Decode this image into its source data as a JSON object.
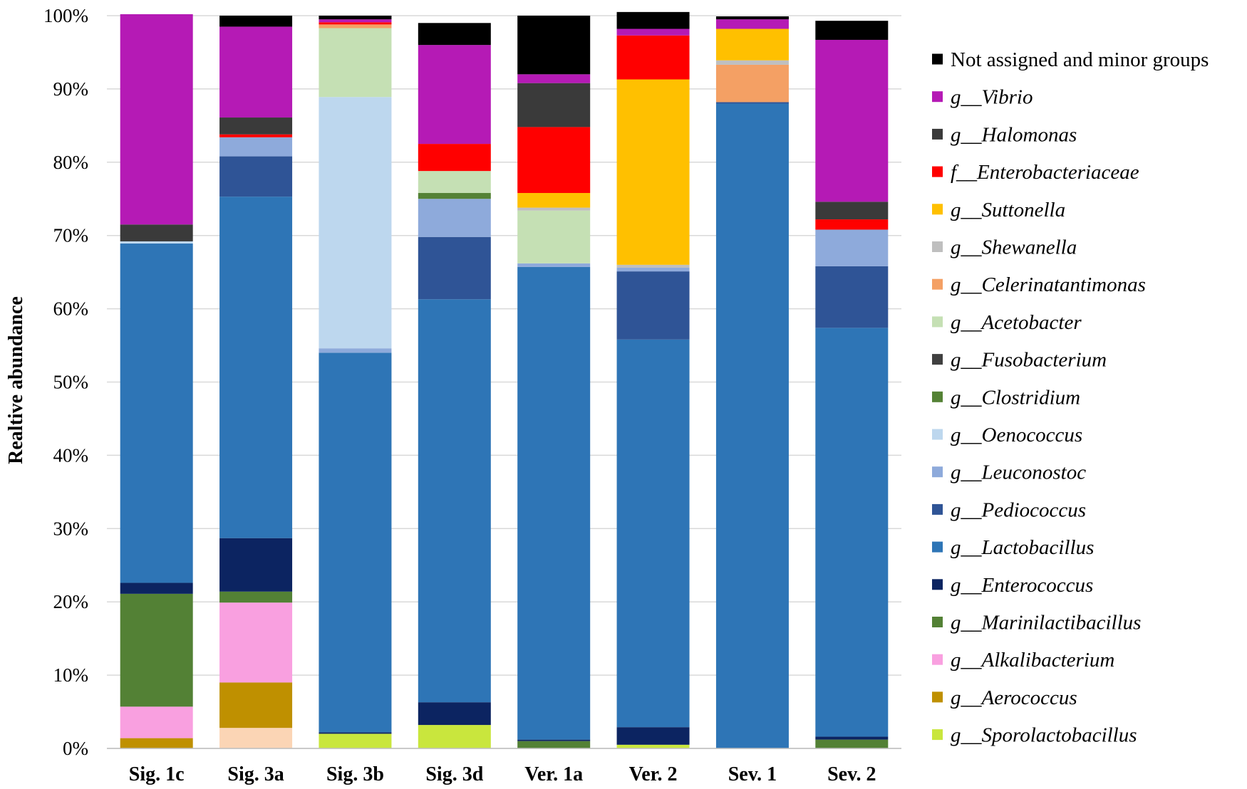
{
  "chart_data": {
    "type": "bar",
    "stacked": true,
    "xlabel": "",
    "ylabel": "Realtive abundance",
    "ylim": [
      0,
      100
    ],
    "y_ticks": [
      "0%",
      "10%",
      "20%",
      "30%",
      "40%",
      "50%",
      "60%",
      "70%",
      "80%",
      "90%",
      "100%"
    ],
    "grid": true,
    "legend_position": "right",
    "categories": [
      "Sig. 1c",
      "Sig. 3a",
      "Sig. 3b",
      "Sig. 3d",
      "Ver. 1a",
      "Ver. 2",
      "Sev. 1",
      "Sev. 2"
    ],
    "series": [
      {
        "name": "g__Sporolactobacillus",
        "color": "#c9e63d",
        "values": [
          0,
          0,
          2.0,
          3.2,
          0,
          0.5,
          0,
          0
        ]
      },
      {
        "name": "g__Aerococcus",
        "color": "#bf9000",
        "values": [
          1.4,
          6.2,
          0,
          0,
          0,
          0,
          0,
          0
        ]
      },
      {
        "name": "g__Alkalibacterium",
        "color": "#f9a0e0",
        "values": [
          4.3,
          10.9,
          0,
          0,
          0,
          0,
          0,
          0
        ]
      },
      {
        "name": "g__Marinilactibacillus",
        "color": "#538135",
        "values": [
          15.4,
          1.5,
          0,
          0,
          1.0,
          0,
          0,
          1.2
        ]
      },
      {
        "name": "g__Enterococcus",
        "color": "#0c2461",
        "values": [
          1.5,
          7.3,
          0.2,
          3.1,
          0.2,
          2.4,
          0,
          0.4
        ]
      },
      {
        "name": "g__Lactobacillus",
        "color": "#2e75b6",
        "values": [
          46.3,
          46.6,
          51.8,
          55.0,
          64.5,
          52.9,
          88.0,
          55.8
        ]
      },
      {
        "name": "g__Pediococcus",
        "color": "#2f5496",
        "values": [
          0,
          5.5,
          0,
          8.5,
          0,
          9.3,
          0.2,
          8.4
        ]
      },
      {
        "name": "g__Leuconostoc",
        "color": "#8eaadb",
        "values": [
          0,
          2.6,
          0.6,
          5.2,
          0.5,
          0.5,
          0,
          5.0
        ]
      },
      {
        "name": "g__Oenococcus",
        "color": "#bdd7ee",
        "values": [
          0.3,
          0,
          34.3,
          0,
          0,
          0,
          0,
          0
        ]
      },
      {
        "name": "g__Clostridium",
        "color": "#548235",
        "values": [
          0,
          0,
          0,
          0.8,
          0,
          0,
          0,
          0
        ]
      },
      {
        "name": "g__Fusobacterium",
        "color": "#404040",
        "values": [
          0,
          0,
          0,
          0,
          0,
          0,
          0,
          0
        ]
      },
      {
        "name": "g__Acetobacter",
        "color": "#c5e0b4",
        "values": [
          0,
          0,
          9.4,
          3.0,
          7.2,
          0,
          0,
          0
        ]
      },
      {
        "name": "g__Celerinatantimonas",
        "color": "#f4a064",
        "values": [
          0,
          0,
          0.5,
          0,
          0,
          0,
          5.1,
          0
        ]
      },
      {
        "name": "g__Shewanella",
        "color": "#bfbfbf",
        "values": [
          0,
          0,
          0,
          0,
          0.4,
          0.4,
          0.6,
          0
        ]
      },
      {
        "name": "g__Suttonella",
        "color": "#ffc000",
        "values": [
          0,
          0,
          0,
          0,
          2.0,
          25.3,
          4.3,
          0
        ]
      },
      {
        "name": "f__Enterobacteriaceae",
        "color": "#ff0000",
        "values": [
          0,
          0.4,
          0.3,
          3.7,
          9.0,
          6.0,
          0,
          1.4
        ]
      },
      {
        "name": "g__Halomonas",
        "color": "#3a3a3a",
        "values": [
          2.3,
          2.3,
          0,
          0,
          6.0,
          0,
          0,
          2.4
        ]
      },
      {
        "name": "g__Vibrio",
        "color": "#b51ab5",
        "values": [
          28.7,
          12.4,
          0.4,
          13.5,
          1.2,
          0.9,
          1.3,
          22.1
        ]
      },
      {
        "name": "Not assigned and minor groups",
        "color": "#000000",
        "values": [
          0,
          1.5,
          0.5,
          3.0,
          8.0,
          2.3,
          0.4,
          2.6
        ]
      },
      {
        "name": "unlabeled-peach",
        "color": "#fbd5b5",
        "values": [
          0,
          2.8,
          0,
          0,
          0,
          0,
          0,
          0
        ],
        "in_legend": false
      }
    ],
    "stack_order": [
      "g__Sporolactobacillus",
      "unlabeled-peach",
      "g__Aerococcus",
      "g__Alkalibacterium",
      "g__Marinilactibacillus",
      "g__Enterococcus",
      "g__Lactobacillus",
      "g__Pediococcus",
      "g__Leuconostoc",
      "g__Oenococcus",
      "g__Clostridium",
      "g__Fusobacterium",
      "g__Acetobacter",
      "g__Celerinatantimonas",
      "g__Shewanella",
      "g__Suttonella",
      "f__Enterobacteriaceae",
      "g__Halomonas",
      "g__Vibrio",
      "Not assigned and minor groups"
    ],
    "legend": [
      {
        "prefix": "",
        "name": "Not assigned and minor groups",
        "color": "#000000"
      },
      {
        "prefix": "g__",
        "name": "Vibrio",
        "color": "#b51ab5"
      },
      {
        "prefix": "g__",
        "name": "Halomonas",
        "color": "#3a3a3a"
      },
      {
        "prefix": "f__",
        "name": "Enterobacteriaceae",
        "color": "#ff0000"
      },
      {
        "prefix": "g__",
        "name": "Suttonella",
        "color": "#ffc000"
      },
      {
        "prefix": "g__",
        "name": "Shewanella",
        "color": "#bfbfbf"
      },
      {
        "prefix": "g__",
        "name": "Celerinatantimonas",
        "color": "#f4a064"
      },
      {
        "prefix": "g__",
        "name": "Acetobacter",
        "color": "#c5e0b4"
      },
      {
        "prefix": "g__",
        "name": "Fusobacterium",
        "color": "#404040"
      },
      {
        "prefix": "g__",
        "name": "Clostridium",
        "color": "#548235"
      },
      {
        "prefix": "g__",
        "name": "Oenococcus",
        "color": "#bdd7ee"
      },
      {
        "prefix": "g__",
        "name": "Leuconostoc",
        "color": "#8eaadb"
      },
      {
        "prefix": "g__",
        "name": "Pediococcus",
        "color": "#2f5496"
      },
      {
        "prefix": "g__",
        "name": "Lactobacillus",
        "color": "#2e75b6"
      },
      {
        "prefix": "g__",
        "name": "Enterococcus",
        "color": "#0c2461"
      },
      {
        "prefix": "g__",
        "name": "Marinilactibacillus",
        "color": "#538135"
      },
      {
        "prefix": "g__",
        "name": "Alkalibacterium",
        "color": "#f9a0e0"
      },
      {
        "prefix": "g__",
        "name": "Aerococcus",
        "color": "#bf9000"
      },
      {
        "prefix": "g__",
        "name": "Sporolactobacillus",
        "color": "#c9e63d"
      }
    ]
  }
}
